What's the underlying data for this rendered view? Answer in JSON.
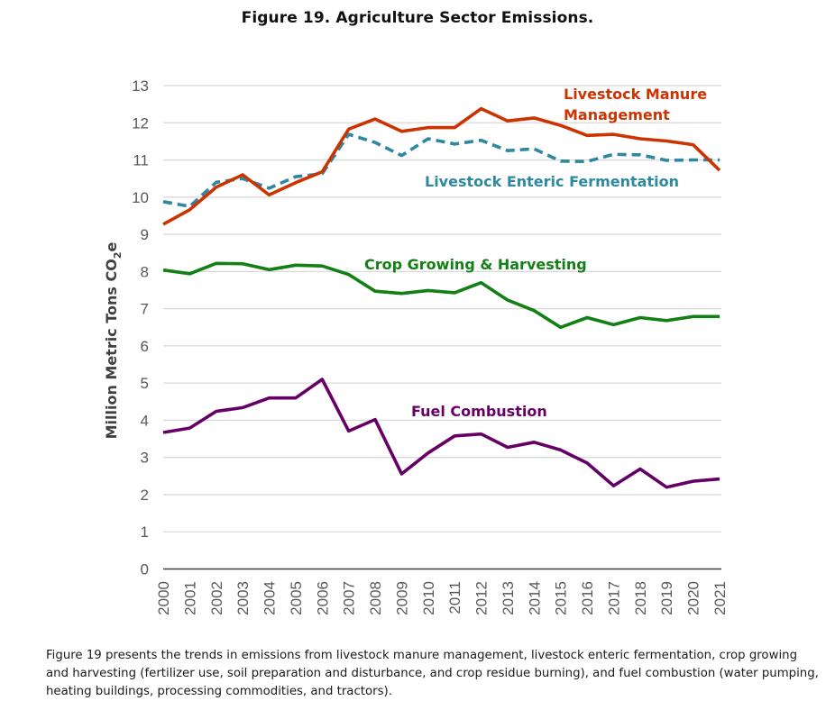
{
  "figure": {
    "title": "Figure 19. Agriculture Sector Emissions.",
    "caption": "Figure 19 presents the trends in emissions from livestock manure management, livestock enteric fermentation, crop growing and harvesting (fertilizer use, soil preparation and disturbance, and crop residue burning), and fuel combustion (water pumping, heating buildings, processing commodities, and tractors)."
  },
  "chart_data": {
    "type": "line",
    "title": "Figure 19. Agriculture Sector Emissions.",
    "xlabel": "",
    "ylabel": "Million Metric Tons CO2e",
    "ylabel_parts": {
      "main": "Million Metric Tons CO",
      "sub": "2",
      "tail": "e"
    },
    "ylim": [
      0,
      13
    ],
    "yticks": [
      0,
      1,
      2,
      3,
      4,
      5,
      6,
      7,
      8,
      9,
      10,
      11,
      12,
      13
    ],
    "grid": true,
    "legend": "inline-labels",
    "x": [
      "2000",
      "2001",
      "2002",
      "2003",
      "2004",
      "2005",
      "2006",
      "2007",
      "2008",
      "2009",
      "2010",
      "2011",
      "2012",
      "2013",
      "2014",
      "2015",
      "2016",
      "2017",
      "2018",
      "2019",
      "2020",
      "2021"
    ],
    "series": [
      {
        "name": "Livestock Manure Management",
        "label_lines": [
          "Livestock Manure",
          "Management"
        ],
        "color": "#CC3300",
        "style": "solid",
        "values": [
          9.27,
          9.66,
          10.27,
          10.6,
          10.06,
          10.39,
          10.68,
          11.83,
          12.1,
          11.77,
          11.87,
          11.87,
          12.38,
          12.05,
          12.13,
          11.93,
          11.66,
          11.69,
          11.57,
          11.51,
          11.41,
          10.72
        ]
      },
      {
        "name": "Livestock Enteric Fermentation",
        "label_lines": [
          "Livestock Enteric Fermentation"
        ],
        "color": "#2E88A0",
        "style": "dashed",
        "values": [
          9.88,
          9.75,
          10.4,
          10.5,
          10.24,
          10.55,
          10.63,
          11.69,
          11.47,
          11.12,
          11.57,
          11.43,
          11.53,
          11.25,
          11.3,
          10.97,
          10.96,
          11.15,
          11.14,
          10.99,
          11.0,
          11.0
        ]
      },
      {
        "name": "Crop Growing & Harvesting",
        "label_lines": [
          "Crop Growing & Harvesting"
        ],
        "color": "#138015",
        "style": "solid",
        "values": [
          8.04,
          7.94,
          8.22,
          8.21,
          8.05,
          8.17,
          8.15,
          7.92,
          7.47,
          7.41,
          7.49,
          7.43,
          7.7,
          7.23,
          6.95,
          6.5,
          6.76,
          6.57,
          6.76,
          6.68,
          6.79,
          6.79
        ]
      },
      {
        "name": "Fuel Combustion",
        "label_lines": [
          "Fuel Combustion"
        ],
        "color": "#660066",
        "style": "solid",
        "values": [
          3.67,
          3.79,
          4.24,
          4.34,
          4.6,
          4.6,
          5.1,
          3.71,
          4.02,
          2.56,
          3.12,
          3.58,
          3.63,
          3.27,
          3.41,
          3.2,
          2.85,
          2.24,
          2.69,
          2.2,
          2.36,
          2.42
        ]
      }
    ],
    "colors": {
      "grid": "#D9D9D9",
      "axis": "#404040",
      "tick_text": "#595959"
    }
  }
}
